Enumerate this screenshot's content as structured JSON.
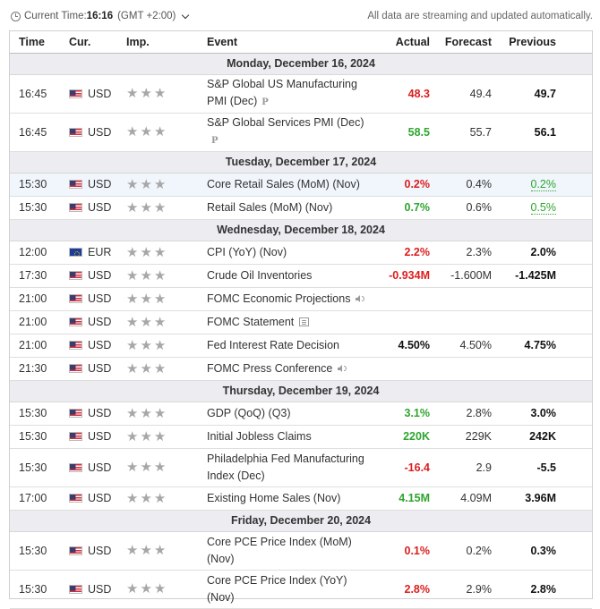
{
  "header": {
    "current_time_label": "Current Time:",
    "current_time": "16:16",
    "timezone": "(GMT +2:00)",
    "streaming_note": "All data are streaming and updated automatically."
  },
  "columns": {
    "time": "Time",
    "currency": "Cur.",
    "importance": "Imp.",
    "event": "Event",
    "actual": "Actual",
    "forecast": "Forecast",
    "previous": "Previous"
  },
  "icons": {
    "star": "★",
    "preliminary": "P"
  },
  "days": [
    {
      "date": "Monday, December 16, 2024",
      "events": [
        {
          "time": "16:45",
          "currency": "USD",
          "flag": "us",
          "importance": 3,
          "event": "S&P Global US Manufacturing PMI (Dec)",
          "icon": "preliminary-icon",
          "actual": "48.3",
          "actual_style": "red",
          "forecast": "49.4",
          "previous": "49.7",
          "previous_style": "bold",
          "tall": true
        },
        {
          "time": "16:45",
          "currency": "USD",
          "flag": "us",
          "importance": 3,
          "event": "S&P Global Services PMI (Dec)",
          "icon": "preliminary-icon",
          "actual": "58.5",
          "actual_style": "green",
          "forecast": "55.7",
          "previous": "56.1",
          "previous_style": "bold",
          "tall": true
        }
      ]
    },
    {
      "date": "Tuesday, December 17, 2024",
      "events": [
        {
          "time": "15:30",
          "currency": "USD",
          "flag": "us",
          "importance": 3,
          "event": "Core Retail Sales (MoM) (Nov)",
          "icon": "",
          "actual": "0.2%",
          "actual_style": "red",
          "forecast": "0.4%",
          "previous": "0.2%",
          "previous_style": "gdot",
          "highlight": true
        },
        {
          "time": "15:30",
          "currency": "USD",
          "flag": "us",
          "importance": 3,
          "event": "Retail Sales (MoM) (Nov)",
          "icon": "",
          "actual": "0.7%",
          "actual_style": "green",
          "forecast": "0.6%",
          "previous": "0.5%",
          "previous_style": "gdot"
        }
      ]
    },
    {
      "date": "Wednesday, December 18, 2024",
      "events": [
        {
          "time": "12:00",
          "currency": "EUR",
          "flag": "eu",
          "importance": 3,
          "event": "CPI (YoY) (Nov)",
          "icon": "",
          "actual": "2.2%",
          "actual_style": "red",
          "forecast": "2.3%",
          "previous": "2.0%",
          "previous_style": "bold"
        },
        {
          "time": "17:30",
          "currency": "USD",
          "flag": "us",
          "importance": 3,
          "event": "Crude Oil Inventories",
          "icon": "",
          "actual": "-0.934M",
          "actual_style": "red",
          "forecast": "-1.600M",
          "previous": "-1.425M",
          "previous_style": "bold"
        },
        {
          "time": "21:00",
          "currency": "USD",
          "flag": "us",
          "importance": 3,
          "event": "FOMC Economic Projections",
          "icon": "speaker-icon",
          "actual": "",
          "actual_style": "",
          "forecast": "",
          "previous": "",
          "previous_style": ""
        },
        {
          "time": "21:00",
          "currency": "USD",
          "flag": "us",
          "importance": 3,
          "event": "FOMC Statement",
          "icon": "document-icon",
          "actual": "",
          "actual_style": "",
          "forecast": "",
          "previous": "",
          "previous_style": ""
        },
        {
          "time": "21:00",
          "currency": "USD",
          "flag": "us",
          "importance": 3,
          "event": "Fed Interest Rate Decision",
          "icon": "",
          "actual": "4.50%",
          "actual_style": "bold",
          "forecast": "4.50%",
          "previous": "4.75%",
          "previous_style": "bold"
        },
        {
          "time": "21:30",
          "currency": "USD",
          "flag": "us",
          "importance": 3,
          "event": "FOMC Press Conference",
          "icon": "speaker-icon",
          "actual": "",
          "actual_style": "",
          "forecast": "",
          "previous": "",
          "previous_style": ""
        }
      ]
    },
    {
      "date": "Thursday, December 19, 2024",
      "events": [
        {
          "time": "15:30",
          "currency": "USD",
          "flag": "us",
          "importance": 3,
          "event": "GDP (QoQ) (Q3)",
          "icon": "",
          "actual": "3.1%",
          "actual_style": "green",
          "forecast": "2.8%",
          "previous": "3.0%",
          "previous_style": "bold"
        },
        {
          "time": "15:30",
          "currency": "USD",
          "flag": "us",
          "importance": 3,
          "event": "Initial Jobless Claims",
          "icon": "",
          "actual": "220K",
          "actual_style": "green",
          "forecast": "229K",
          "previous": "242K",
          "previous_style": "bold"
        },
        {
          "time": "15:30",
          "currency": "USD",
          "flag": "us",
          "importance": 3,
          "event": "Philadelphia Fed Manufacturing Index (Dec)",
          "icon": "",
          "actual": "-16.4",
          "actual_style": "red",
          "forecast": "2.9",
          "previous": "-5.5",
          "previous_style": "bold",
          "tall": true
        },
        {
          "time": "17:00",
          "currency": "USD",
          "flag": "us",
          "importance": 3,
          "event": "Existing Home Sales (Nov)",
          "icon": "",
          "actual": "4.15M",
          "actual_style": "green",
          "forecast": "4.09M",
          "previous": "3.96M",
          "previous_style": "bold"
        }
      ]
    },
    {
      "date": "Friday, December 20, 2024",
      "events": [
        {
          "time": "15:30",
          "currency": "USD",
          "flag": "us",
          "importance": 3,
          "event": "Core PCE Price Index (MoM) (Nov)",
          "icon": "",
          "actual": "0.1%",
          "actual_style": "red",
          "forecast": "0.2%",
          "previous": "0.3%",
          "previous_style": "bold",
          "tall": true
        },
        {
          "time": "15:30",
          "currency": "USD",
          "flag": "us",
          "importance": 3,
          "event": "Core PCE Price Index (YoY) (Nov)",
          "icon": "",
          "actual": "2.8%",
          "actual_style": "red",
          "forecast": "2.9%",
          "previous": "2.8%",
          "previous_style": "bold",
          "tall": true
        }
      ]
    }
  ]
}
